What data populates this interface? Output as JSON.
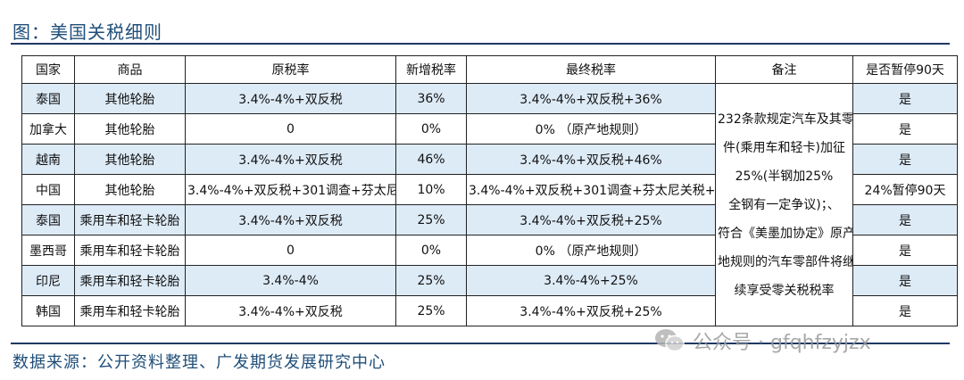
{
  "figure_title": "图：美国关税细则",
  "table": {
    "headers": [
      "国家",
      "商品",
      "原税率",
      "新增税率",
      "最终税率",
      "备注",
      "是否暂停90天"
    ],
    "rows": [
      {
        "country": "泰国",
        "product": "其他轮胎",
        "original_rate": "3.4%-4%+双反税",
        "added_rate": "36%",
        "final_rate": "3.4%-4%+双反税+36%",
        "pause_90": "是"
      },
      {
        "country": "加拿大",
        "product": "其他轮胎",
        "original_rate": "0",
        "added_rate": "0%",
        "final_rate": "0% （原产地规则）",
        "pause_90": "是"
      },
      {
        "country": "越南",
        "product": "其他轮胎",
        "original_rate": "3.4%-4%+双反税",
        "added_rate": "46%",
        "final_rate": "3.4%-4%+双反税+46%",
        "pause_90": "是"
      },
      {
        "country": "中国",
        "product": "其他轮胎",
        "original_rate": "3.4%-4%+双反税+301调查+芬太尼关税",
        "added_rate": "10%",
        "final_rate": "3.4%-4%+双反税+301调查+芬太尼关税+10%",
        "pause_90": "24%暂停90天"
      },
      {
        "country": "泰国",
        "product": "乘用车和轻卡轮胎",
        "original_rate": "3.4%-4%+双反税",
        "added_rate": "25%",
        "final_rate": "3.4%-4%+双反税+25%",
        "pause_90": "是"
      },
      {
        "country": "墨西哥",
        "product": "乘用车和轻卡轮胎",
        "original_rate": "0",
        "added_rate": "0%",
        "final_rate": "0% （原产地规则）",
        "pause_90": "是"
      },
      {
        "country": "印尼",
        "product": "乘用车和轻卡轮胎",
        "original_rate": "3.4%-4%",
        "added_rate": "25%",
        "final_rate": "3.4%-4%+25%",
        "pause_90": "是"
      },
      {
        "country": "韩国",
        "product": "乘用车和轻卡轮胎",
        "original_rate": "3.4%-4%+双反税",
        "added_rate": "25%",
        "final_rate": "3.4%-4%+双反税+25%",
        "pause_90": "是"
      }
    ],
    "note_lines": [
      "232条款规定汽车及其零部",
      "件(乘用车和轻卡)加征",
      "25%(半钢加25%",
      "全钢有一定争议)；、",
      "符合《美墨加协定》原产",
      "地规则的汽车零部件将继",
      "续享受零关税税率"
    ]
  },
  "source": "数据来源：公开资料整理、广发期货发展研究中心",
  "watermark": {
    "icon": "wechat-icon",
    "text": "公众号 · gfqhfzyjzx"
  },
  "colors": {
    "title": "#1f4e79",
    "alt_row": "#ddebf7",
    "rule": "#1f3864"
  }
}
